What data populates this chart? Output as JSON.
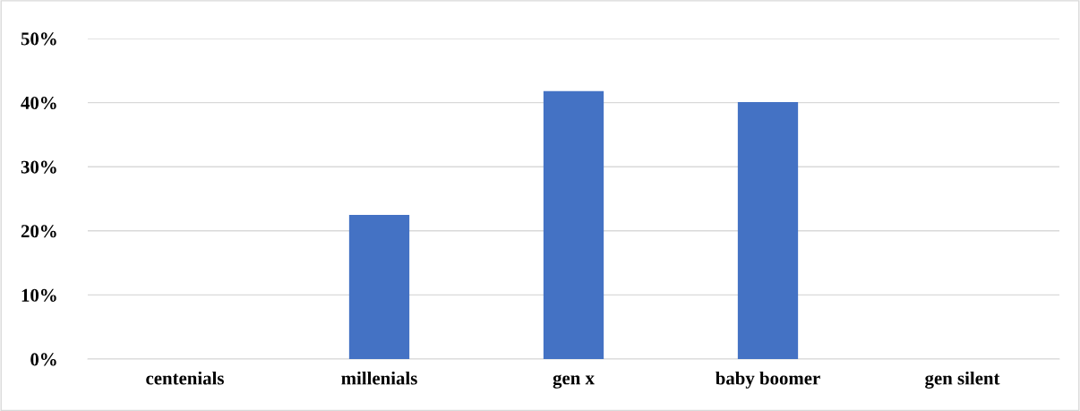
{
  "chart_data": {
    "type": "bar",
    "categories": [
      "centenials",
      "millenials",
      "gen x",
      "baby boomer",
      "gen silent"
    ],
    "values": [
      0,
      22.5,
      41.8,
      40.1,
      0
    ],
    "color": "#4472c4",
    "ylim": [
      0,
      50
    ],
    "yticks": [
      {
        "value": 0,
        "label": "0%"
      },
      {
        "value": 10,
        "label": "10%"
      },
      {
        "value": 20,
        "label": "20%"
      },
      {
        "value": 30,
        "label": "30%"
      },
      {
        "value": 40,
        "label": "40%"
      },
      {
        "value": 50,
        "label": "50%"
      }
    ],
    "grid": "y",
    "legend": false
  }
}
